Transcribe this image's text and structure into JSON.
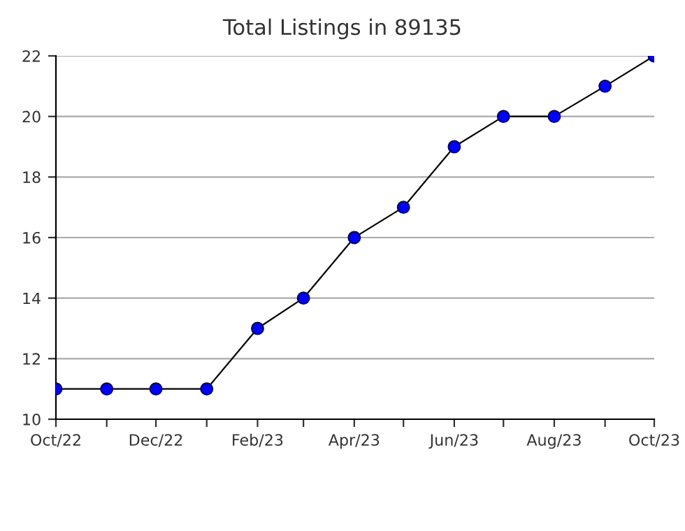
{
  "chart_data": {
    "type": "line",
    "title": "Total Listings in 89135",
    "x": [
      "2022-10",
      "2022-11",
      "2022-12",
      "2023-01",
      "2023-02",
      "2023-03",
      "2023-04",
      "2023-05",
      "2023-06",
      "2023-07",
      "2023-08",
      "2023-09",
      "2023-10"
    ],
    "series": [
      {
        "color": "#0000ff",
        "values": [
          11,
          11,
          11,
          11,
          13,
          14,
          16,
          17,
          19,
          20,
          20,
          21,
          22
        ]
      }
    ],
    "xlim": [
      "2022-10",
      "2023-10"
    ],
    "xticks": [
      {
        "value": "2022-10",
        "label": "Oct/22"
      },
      {
        "value": "2022-11",
        "label": null
      },
      {
        "value": "2022-12",
        "label": "Dec/22"
      },
      {
        "value": "2023-01",
        "label": null
      },
      {
        "value": "2023-02",
        "label": "Feb/23"
      },
      {
        "value": "2023-03",
        "label": null
      },
      {
        "value": "2023-04",
        "label": "Apr/23"
      },
      {
        "value": "2023-05",
        "label": null
      },
      {
        "value": "2023-06",
        "label": "Jun/23"
      },
      {
        "value": "2023-07",
        "label": null
      },
      {
        "value": "2023-08",
        "label": "Aug/23"
      },
      {
        "value": "2023-09",
        "label": null
      },
      {
        "value": "2023-10",
        "label": "Oct/23"
      }
    ],
    "ylim": [
      10,
      22
    ],
    "yticks": [
      10,
      12,
      14,
      16,
      18,
      20,
      22
    ],
    "grid": "y",
    "legend": false,
    "marker": "circle",
    "line_style": "solid"
  }
}
